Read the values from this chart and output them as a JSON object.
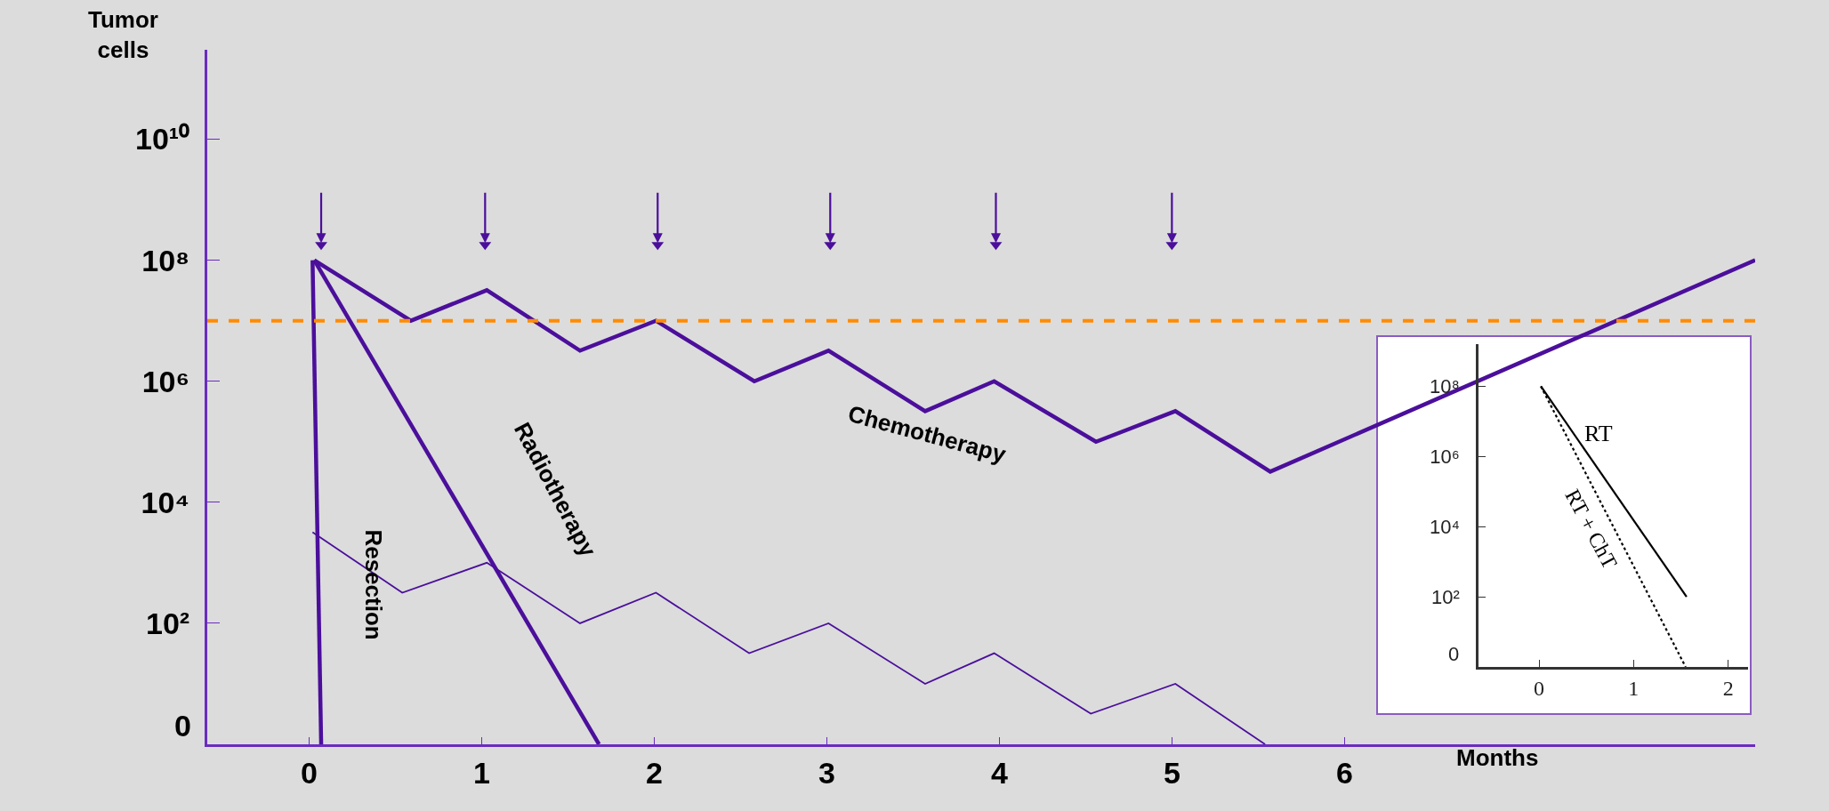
{
  "chart_data": [
    {
      "type": "line",
      "xlabel": "Months",
      "ylabel": "Tumor cells",
      "log": true,
      "grid": false,
      "legend": false,
      "xlim": [
        -0.59,
        8.38
      ],
      "ylim": [
        1,
        300000000000
      ],
      "xticks": [
        0,
        1,
        2,
        3,
        4,
        5,
        6
      ],
      "yticks": [
        {
          "value": 1,
          "label": null
        },
        {
          "value": 100,
          "label": "10²"
        },
        {
          "value": 10000,
          "label": "10⁴"
        },
        {
          "value": 1000000,
          "label": "10⁶"
        },
        {
          "value": 100000000,
          "label": "10⁸"
        },
        {
          "value": 10000000000,
          "label": "10¹⁰"
        }
      ],
      "annotations": [
        "0"
      ],
      "series": [
        {
          "name": "Chemotherapy",
          "color": "#4b0f9b",
          "x": [
            0.03,
            0.59,
            1.03,
            1.57,
            2.01,
            2.58,
            3.01,
            3.57,
            3.97,
            4.56,
            5.02,
            5.57,
            8.38
          ],
          "values": [
            100000000,
            10000000,
            32000000,
            3200000,
            10000000,
            1000000,
            3200000,
            320000,
            1000000,
            100000,
            320000,
            32000,
            100000000
          ]
        },
        {
          "name": "Radiotherapy",
          "color": "#4b0f9b",
          "x": [
            0.03,
            1.68
          ],
          "values": [
            100000000,
            1
          ]
        },
        {
          "name": "Resection",
          "color": "#4b0f9b",
          "x": [
            0.02,
            0.07
          ],
          "values": [
            100000000,
            1
          ]
        },
        {
          "color": "#4b0f9b",
          "x": [
            0.02,
            0.54,
            1.03,
            1.57,
            2.01,
            2.55,
            3.01,
            3.57,
            3.97,
            4.53,
            5.02,
            5.54
          ],
          "values": [
            3200,
            320,
            1000,
            100,
            320,
            32,
            100,
            10,
            32,
            3.2,
            10,
            1
          ]
        },
        {
          "type": "scatter",
          "marker": "triangle",
          "color": "#4b0f9b",
          "x": [
            0.07,
            1.02,
            2.02,
            3.02,
            3.98,
            5.0
          ],
          "values": [
            180000000,
            180000000,
            180000000,
            180000000,
            180000000,
            180000000
          ]
        }
      ],
      "ref_lines": [
        {
          "axis": "y",
          "value": 10000000,
          "color": "#ff8c00",
          "line_style": "dashed"
        }
      ]
    },
    {
      "type": "line",
      "log": true,
      "grid": false,
      "legend": false,
      "xlim": [
        -0.64,
        2.21
      ],
      "ylim": [
        1,
        1600000000
      ],
      "xticks": [
        0,
        1,
        2
      ],
      "yticks": [
        {
          "value": 100,
          "label": "10²"
        },
        {
          "value": 10000,
          "label": "10⁴"
        },
        {
          "value": 1000000,
          "label": "10⁶"
        },
        {
          "value": 100000000,
          "label": "10⁸"
        }
      ],
      "annotations": [
        "0"
      ],
      "series": [
        {
          "name": "RT",
          "color": "#000000",
          "line_style": "solid",
          "x": [
            0.02,
            1.56
          ],
          "values": [
            100000000,
            100
          ]
        },
        {
          "name": "RT + ChT",
          "color": "#000000",
          "line_style": "dotted",
          "x": [
            0.02,
            1.55
          ],
          "values": [
            100000000,
            1
          ]
        }
      ]
    }
  ]
}
